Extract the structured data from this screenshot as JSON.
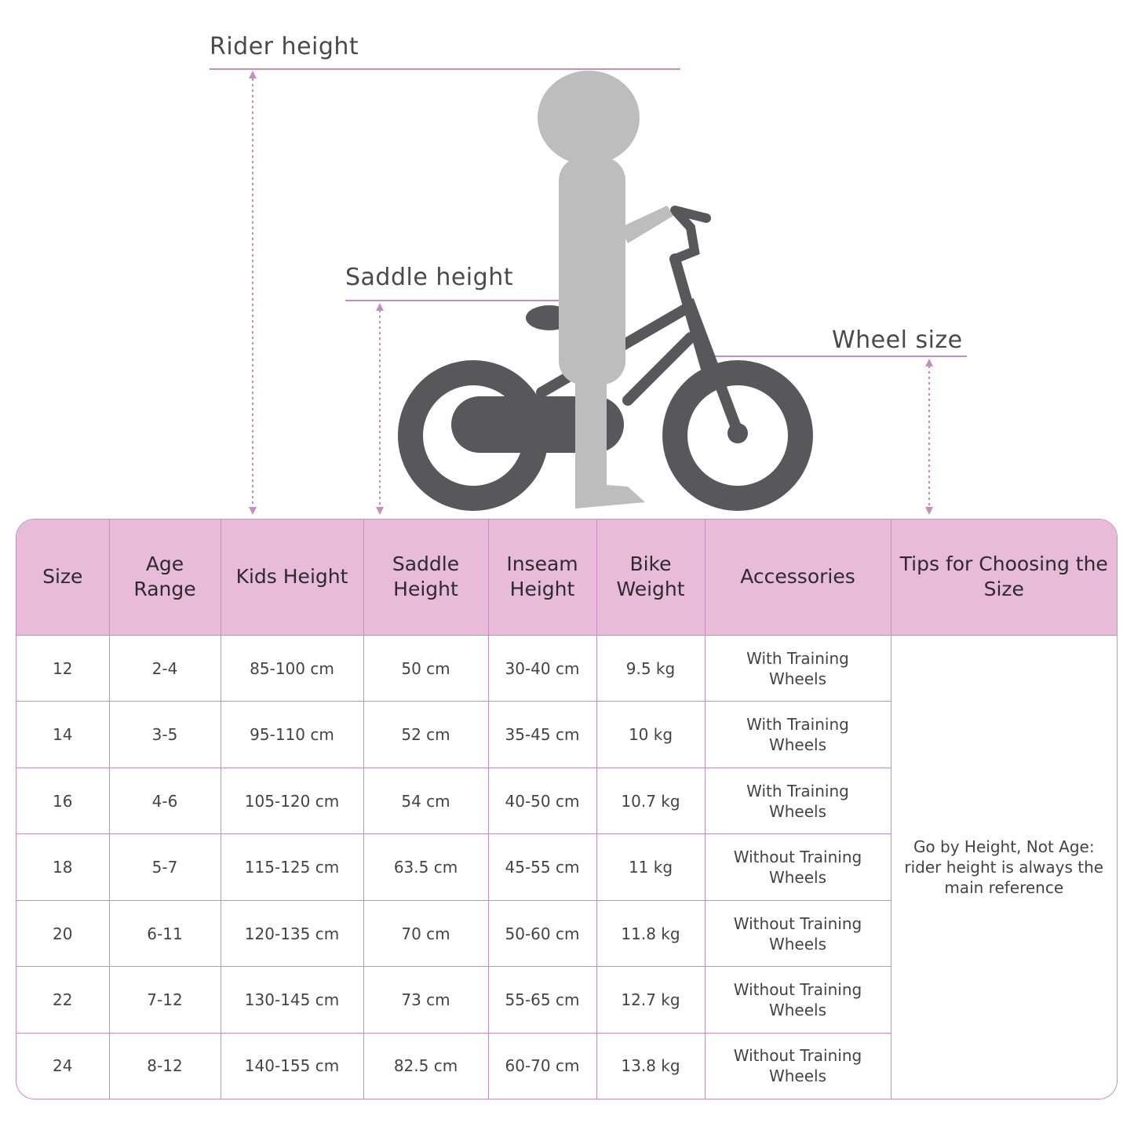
{
  "labels": {
    "rider_height": "Rider height",
    "saddle_height": "Saddle height",
    "wheel_size": "Wheel size"
  },
  "colors": {
    "accent": "#c48fbf",
    "header_bg": "#e8bcd9",
    "bike": "#58585a",
    "child": "#bdbdbd"
  },
  "table": {
    "headers": [
      "Size",
      "Age Range",
      "Kids Height",
      "Saddle Height",
      "Inseam Height",
      "Bike Weight",
      "Accessories",
      "Tips for Choosing the Size"
    ],
    "rows": [
      [
        "12",
        "2-4",
        "85-100 cm",
        "50 cm",
        "30-40 cm",
        "9.5 kg",
        "With Training Wheels"
      ],
      [
        "14",
        "3-5",
        "95-110 cm",
        "52 cm",
        "35-45 cm",
        "10 kg",
        "With Training Wheels"
      ],
      [
        "16",
        "4-6",
        "105-120 cm",
        "54 cm",
        "40-50 cm",
        "10.7 kg",
        "With Training Wheels"
      ],
      [
        "18",
        "5-7",
        "115-125 cm",
        "63.5 cm",
        "45-55 cm",
        "11 kg",
        "Without Training Wheels"
      ],
      [
        "20",
        "6-11",
        "120-135 cm",
        "70 cm",
        "50-60 cm",
        "11.8 kg",
        "Without Training Wheels"
      ],
      [
        "22",
        "7-12",
        "130-145 cm",
        "73 cm",
        "55-65 cm",
        "12.7 kg",
        "Without Training Wheels"
      ],
      [
        "24",
        "8-12",
        "140-155 cm",
        "82.5 cm",
        "60-70 cm",
        "13.8 kg",
        "Without Training Wheels"
      ]
    ],
    "tip": "Go by Height, Not Age: rider height is always the main reference"
  }
}
